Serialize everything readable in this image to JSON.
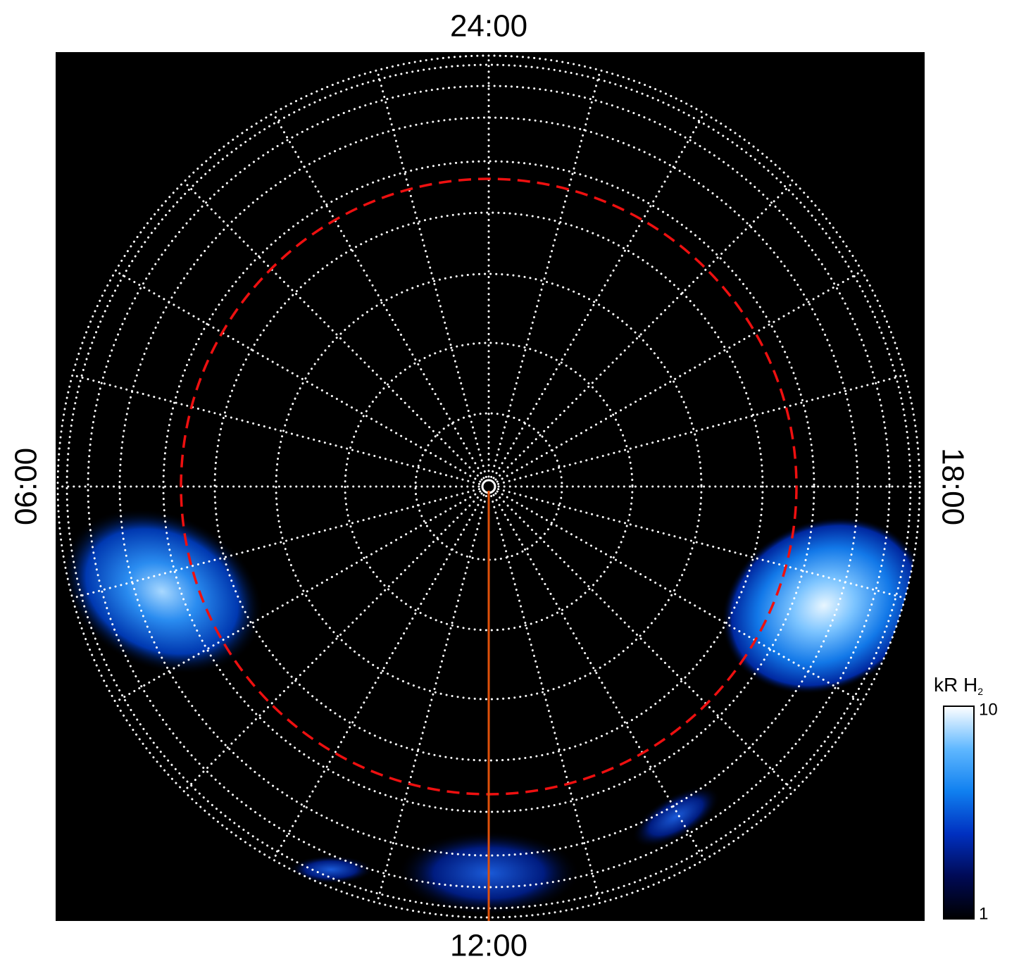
{
  "chart_data": {
    "type": "polar-map",
    "labels": {
      "top": "24:00",
      "left": "06:00",
      "right": "18:00",
      "bottom": "12:00"
    },
    "colorbar": {
      "label": "kR H",
      "label_sub": "2",
      "lim": [
        1,
        10
      ],
      "ticks": [
        1,
        10
      ],
      "log": true,
      "colors": [
        "#000000",
        "#000a55",
        "#0030c0",
        "#1080f0",
        "#60b8ff",
        "#ffffff"
      ]
    }
  }
}
